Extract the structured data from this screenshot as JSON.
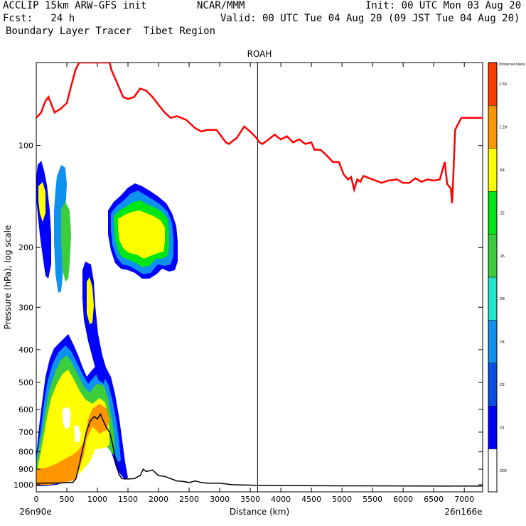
{
  "header": {
    "model": "ACCLIP 15km ARW-GFS init",
    "org": "NCAR/MMM",
    "init": "Init: 00 UTC Mon 03 Aug 20",
    "fcst": "Fcst:   24 h",
    "valid": "Valid: 00 UTC Tue 04 Aug 20 (09 JST Tue 04 Aug 20)",
    "field": "Boundary Layer Tracer  Tibet Region"
  },
  "chart_data": {
    "type": "heatmap",
    "title": "ROAH",
    "xlabel": "Distance (km)",
    "ylabel": "Pressure (hPa), log scale",
    "xlim": [
      0,
      7300
    ],
    "ylim": [
      1050,
      57
    ],
    "log_y": true,
    "x_ticks": [
      0,
      500,
      1000,
      1500,
      2000,
      2500,
      3000,
      3500,
      4000,
      4500,
      5000,
      5500,
      6000,
      6500,
      7000
    ],
    "y_ticks": [
      100,
      200,
      300,
      400,
      500,
      600,
      700,
      800,
      900,
      1000
    ],
    "x_start_label": "26n90e",
    "x_end_label": "26n166e",
    "marker_x": 3620,
    "colorbar": {
      "unit_label": "Dimensionless",
      "levels": [
        ".005",
        ".01",
        ".02",
        ".04",
        ".08",
        ".16",
        ".32",
        ".64",
        "1.28",
        "2.56"
      ],
      "colors": [
        "#ffffff",
        "#0000ff",
        "#0a50e6",
        "#0f91f0",
        "#1ee6c8",
        "#3ccd3c",
        "#00e614",
        "#ffff00",
        "#ff9600",
        "#ff3c00"
      ]
    },
    "tropopause_color": "#ff0000",
    "terrain_color": "#000000",
    "tropopause": [
      [
        0,
        83
      ],
      [
        80,
        80
      ],
      [
        150,
        74
      ],
      [
        200,
        72
      ],
      [
        300,
        80
      ],
      [
        400,
        78
      ],
      [
        500,
        75
      ],
      [
        560,
        68
      ],
      [
        640,
        60
      ],
      [
        700,
        57
      ],
      [
        760,
        57
      ],
      [
        1200,
        57
      ],
      [
        1230,
        60
      ],
      [
        1300,
        64
      ],
      [
        1420,
        72
      ],
      [
        1500,
        73
      ],
      [
        1600,
        72
      ],
      [
        1700,
        68
      ],
      [
        1800,
        69
      ],
      [
        1900,
        72
      ],
      [
        2000,
        76
      ],
      [
        2100,
        80
      ],
      [
        2200,
        83
      ],
      [
        2300,
        82
      ],
      [
        2450,
        84
      ],
      [
        2600,
        89
      ],
      [
        2700,
        91
      ],
      [
        2800,
        90
      ],
      [
        2950,
        90
      ],
      [
        3100,
        98
      ],
      [
        3150,
        99
      ],
      [
        3280,
        95
      ],
      [
        3400,
        88
      ],
      [
        3500,
        91
      ],
      [
        3600,
        95
      ],
      [
        3650,
        98
      ],
      [
        3700,
        99
      ],
      [
        3800,
        96
      ],
      [
        3900,
        93
      ],
      [
        4000,
        96
      ],
      [
        4100,
        94
      ],
      [
        4200,
        98
      ],
      [
        4300,
        96
      ],
      [
        4400,
        99
      ],
      [
        4500,
        98
      ],
      [
        4550,
        103
      ],
      [
        4650,
        103
      ],
      [
        4750,
        107
      ],
      [
        4850,
        112
      ],
      [
        4950,
        112
      ],
      [
        5030,
        122
      ],
      [
        5100,
        126
      ],
      [
        5150,
        124
      ],
      [
        5200,
        135
      ],
      [
        5250,
        126
      ],
      [
        5300,
        128
      ],
      [
        5350,
        123
      ],
      [
        5500,
        126
      ],
      [
        5650,
        129
      ],
      [
        5750,
        127
      ],
      [
        5900,
        126
      ],
      [
        6000,
        129
      ],
      [
        6100,
        129
      ],
      [
        6200,
        125
      ],
      [
        6300,
        128
      ],
      [
        6400,
        126
      ],
      [
        6500,
        127
      ],
      [
        6600,
        126
      ],
      [
        6680,
        112
      ],
      [
        6720,
        130
      ],
      [
        6780,
        134
      ],
      [
        6800,
        148
      ],
      [
        6820,
        124
      ],
      [
        6850,
        90
      ],
      [
        6950,
        83
      ],
      [
        7300,
        83
      ]
    ],
    "terrain": [
      [
        0,
        990
      ],
      [
        400,
        988
      ],
      [
        600,
        984
      ],
      [
        650,
        960
      ],
      [
        700,
        880
      ],
      [
        750,
        800
      ],
      [
        820,
        700
      ],
      [
        880,
        650
      ],
      [
        950,
        630
      ],
      [
        1000,
        640
      ],
      [
        1050,
        620
      ],
      [
        1100,
        650
      ],
      [
        1150,
        680
      ],
      [
        1200,
        700
      ],
      [
        1250,
        760
      ],
      [
        1300,
        850
      ],
      [
        1350,
        930
      ],
      [
        1400,
        960
      ],
      [
        1500,
        962
      ],
      [
        1600,
        960
      ],
      [
        1700,
        940
      ],
      [
        1750,
        900
      ],
      [
        1800,
        915
      ],
      [
        1900,
        905
      ],
      [
        2000,
        940
      ],
      [
        2100,
        945
      ],
      [
        2200,
        960
      ],
      [
        2300,
        975
      ],
      [
        2400,
        978
      ],
      [
        2500,
        985
      ],
      [
        2600,
        975
      ],
      [
        2700,
        985
      ],
      [
        2800,
        990
      ],
      [
        3000,
        990
      ],
      [
        3200,
        1000
      ],
      [
        3600,
        1004
      ],
      [
        4000,
        1006
      ],
      [
        5000,
        1008
      ],
      [
        7300,
        1010
      ]
    ]
  }
}
